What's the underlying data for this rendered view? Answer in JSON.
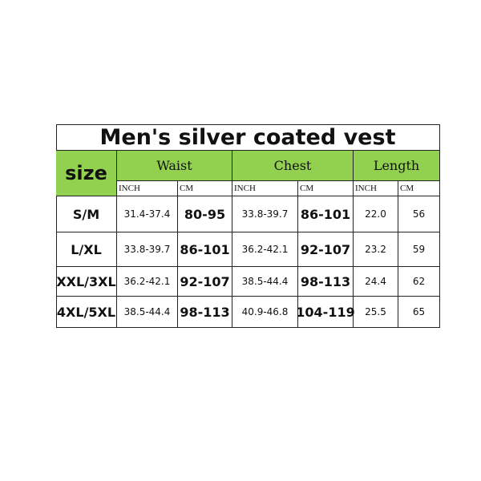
{
  "table": {
    "title": "Men's silver coated vest",
    "header": [
      "size",
      "Waist",
      "Chest",
      "Length"
    ],
    "units": [
      "INCH",
      "CM",
      "INCH",
      "CM",
      "INCH",
      "CM"
    ],
    "rows": [
      [
        "S/M",
        "31.4-37.4",
        "80-95",
        "33.8-39.7",
        "86-101",
        "22.0",
        "56"
      ],
      [
        "L/XL",
        "33.8-39.7",
        "86-101",
        "36.2-42.1",
        "92-107",
        "23.2",
        "59"
      ],
      [
        "XXL/3XL",
        "36.2-42.1",
        "92-107",
        "38.5-44.4",
        "98-113",
        "24.4",
        "62"
      ],
      [
        "4XL/5XL",
        "38.5-44.4",
        "98-113",
        "40.9-46.8",
        "104-119",
        "25.5",
        "65"
      ]
    ]
  }
}
